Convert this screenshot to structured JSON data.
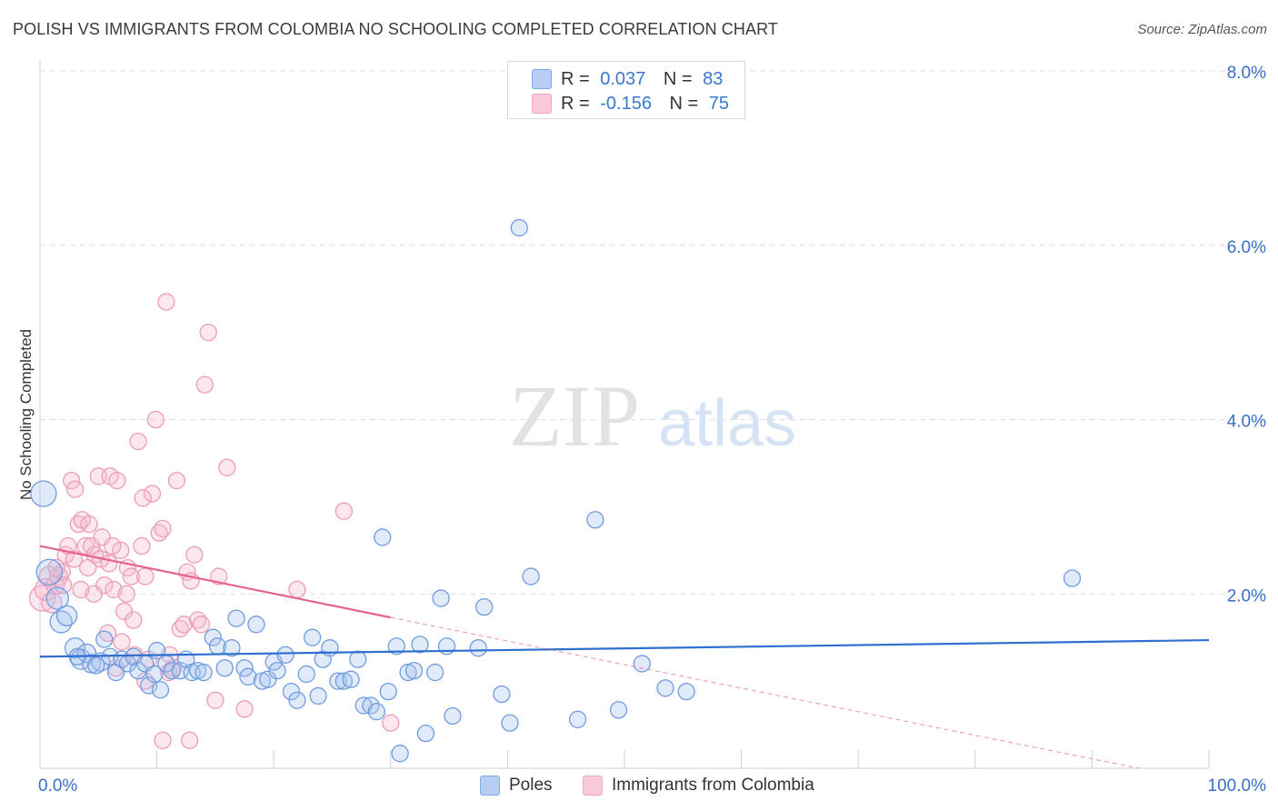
{
  "title": "POLISH VS IMMIGRANTS FROM COLOMBIA NO SCHOOLING COMPLETED CORRELATION CHART",
  "source": "Source: ZipAtlas.com",
  "watermark": {
    "zip": "ZIP",
    "atlas": "atlas"
  },
  "legend": {
    "r_label": "R =",
    "n_label": "N =",
    "rows": [
      {
        "r": "0.037",
        "n": "83"
      },
      {
        "r": "-0.156",
        "n": "75"
      }
    ]
  },
  "chart_data": {
    "type": "scatter",
    "title": "POLISH VS IMMIGRANTS FROM COLOMBIA NO SCHOOLING COMPLETED CORRELATION CHART",
    "xlabel": "",
    "ylabel": "No Schooling Completed",
    "xlim": [
      0,
      100
    ],
    "ylim": [
      0,
      8
    ],
    "x_tick_labels": [
      {
        "value": 0,
        "label": "0.0%"
      },
      {
        "value": 100,
        "label": "100.0%"
      }
    ],
    "y_tick_labels": [
      {
        "value": 2,
        "label": "2.0%"
      },
      {
        "value": 4,
        "label": "4.0%"
      },
      {
        "value": 6,
        "label": "6.0%"
      },
      {
        "value": 8,
        "label": "8.0%"
      }
    ],
    "grid": true,
    "legend_position": "bottom",
    "series": [
      {
        "name": "Poles",
        "color": "#7fa8e8",
        "line_color": "#2f6fcf",
        "trend": {
          "x": [
            0,
            100
          ],
          "y": [
            1.28,
            1.47
          ],
          "extend_dashed_to": 100
        },
        "points": [
          {
            "x": 0.3,
            "y": 3.15,
            "s": 14
          },
          {
            "x": 0.8,
            "y": 2.25,
            "s": 14
          },
          {
            "x": 1.5,
            "y": 1.95,
            "s": 12
          },
          {
            "x": 1.8,
            "y": 1.68,
            "s": 12
          },
          {
            "x": 2.3,
            "y": 1.75,
            "s": 11
          },
          {
            "x": 3.0,
            "y": 1.38,
            "s": 11
          },
          {
            "x": 3.5,
            "y": 1.25,
            "s": 11
          },
          {
            "x": 4.0,
            "y": 1.32,
            "s": 10
          },
          {
            "x": 4.4,
            "y": 1.2,
            "s": 10
          },
          {
            "x": 5.2,
            "y": 1.22,
            "s": 10
          },
          {
            "x": 5.5,
            "y": 1.48,
            "s": 9
          },
          {
            "x": 6.0,
            "y": 1.28,
            "s": 9
          },
          {
            "x": 6.5,
            "y": 1.1,
            "s": 9
          },
          {
            "x": 7.0,
            "y": 1.25,
            "s": 9
          },
          {
            "x": 7.5,
            "y": 1.2,
            "s": 9
          },
          {
            "x": 8.0,
            "y": 1.28,
            "s": 9
          },
          {
            "x": 8.4,
            "y": 1.12,
            "s": 9
          },
          {
            "x": 9.0,
            "y": 1.2,
            "s": 9
          },
          {
            "x": 9.3,
            "y": 0.95,
            "s": 9
          },
          {
            "x": 9.8,
            "y": 1.08,
            "s": 9
          },
          {
            "x": 10.3,
            "y": 0.9,
            "s": 9
          },
          {
            "x": 10.8,
            "y": 1.2,
            "s": 9
          },
          {
            "x": 11.3,
            "y": 1.12,
            "s": 9
          },
          {
            "x": 12.0,
            "y": 1.12,
            "s": 9
          },
          {
            "x": 12.5,
            "y": 1.25,
            "s": 9
          },
          {
            "x": 13.0,
            "y": 1.1,
            "s": 9
          },
          {
            "x": 13.5,
            "y": 1.12,
            "s": 9
          },
          {
            "x": 14.0,
            "y": 1.1,
            "s": 9
          },
          {
            "x": 14.8,
            "y": 1.5,
            "s": 9
          },
          {
            "x": 15.2,
            "y": 1.4,
            "s": 9
          },
          {
            "x": 15.8,
            "y": 1.15,
            "s": 9
          },
          {
            "x": 16.4,
            "y": 1.38,
            "s": 9
          },
          {
            "x": 16.8,
            "y": 1.72,
            "s": 9
          },
          {
            "x": 17.5,
            "y": 1.15,
            "s": 9
          },
          {
            "x": 17.8,
            "y": 1.05,
            "s": 9
          },
          {
            "x": 18.5,
            "y": 1.65,
            "s": 9
          },
          {
            "x": 19.0,
            "y": 1.0,
            "s": 9
          },
          {
            "x": 19.5,
            "y": 1.02,
            "s": 9
          },
          {
            "x": 20.0,
            "y": 1.22,
            "s": 9
          },
          {
            "x": 20.3,
            "y": 1.12,
            "s": 9
          },
          {
            "x": 21.0,
            "y": 1.3,
            "s": 9
          },
          {
            "x": 21.5,
            "y": 0.88,
            "s": 9
          },
          {
            "x": 22.0,
            "y": 0.78,
            "s": 9
          },
          {
            "x": 22.8,
            "y": 1.08,
            "s": 9
          },
          {
            "x": 23.3,
            "y": 1.5,
            "s": 9
          },
          {
            "x": 23.8,
            "y": 0.83,
            "s": 9
          },
          {
            "x": 24.2,
            "y": 1.25,
            "s": 9
          },
          {
            "x": 24.8,
            "y": 1.38,
            "s": 9
          },
          {
            "x": 25.5,
            "y": 1.0,
            "s": 9
          },
          {
            "x": 26.0,
            "y": 1.0,
            "s": 9
          },
          {
            "x": 26.6,
            "y": 1.02,
            "s": 9
          },
          {
            "x": 27.2,
            "y": 1.25,
            "s": 9
          },
          {
            "x": 27.7,
            "y": 0.72,
            "s": 9
          },
          {
            "x": 28.3,
            "y": 0.72,
            "s": 9
          },
          {
            "x": 28.8,
            "y": 0.65,
            "s": 9
          },
          {
            "x": 29.3,
            "y": 2.65,
            "s": 9
          },
          {
            "x": 29.8,
            "y": 0.88,
            "s": 9
          },
          {
            "x": 30.5,
            "y": 1.4,
            "s": 9
          },
          {
            "x": 30.8,
            "y": 0.17,
            "s": 9
          },
          {
            "x": 31.5,
            "y": 1.1,
            "s": 9
          },
          {
            "x": 32.0,
            "y": 1.12,
            "s": 9
          },
          {
            "x": 32.5,
            "y": 1.42,
            "s": 9
          },
          {
            "x": 33.0,
            "y": 0.4,
            "s": 9
          },
          {
            "x": 33.8,
            "y": 1.1,
            "s": 9
          },
          {
            "x": 34.3,
            "y": 1.95,
            "s": 9
          },
          {
            "x": 34.8,
            "y": 1.4,
            "s": 9
          },
          {
            "x": 35.3,
            "y": 0.6,
            "s": 9
          },
          {
            "x": 37.5,
            "y": 1.38,
            "s": 9
          },
          {
            "x": 38.0,
            "y": 1.85,
            "s": 9
          },
          {
            "x": 39.5,
            "y": 0.85,
            "s": 9
          },
          {
            "x": 40.2,
            "y": 0.52,
            "s": 9
          },
          {
            "x": 41.0,
            "y": 6.2,
            "s": 9
          },
          {
            "x": 42.0,
            "y": 2.2,
            "s": 9
          },
          {
            "x": 46.0,
            "y": 0.56,
            "s": 9
          },
          {
            "x": 47.5,
            "y": 2.85,
            "s": 9
          },
          {
            "x": 49.5,
            "y": 0.67,
            "s": 9
          },
          {
            "x": 51.5,
            "y": 1.2,
            "s": 9
          },
          {
            "x": 53.5,
            "y": 0.92,
            "s": 9
          },
          {
            "x": 55.3,
            "y": 0.88,
            "s": 9
          },
          {
            "x": 88.3,
            "y": 2.18,
            "s": 9
          },
          {
            "x": 3.2,
            "y": 1.28,
            "s": 9
          },
          {
            "x": 4.8,
            "y": 1.18,
            "s": 9
          },
          {
            "x": 10.0,
            "y": 1.35,
            "s": 9
          }
        ]
      },
      {
        "name": "Immigrants from Colombia",
        "color": "#f1a5bf",
        "line_color": "#e4638e",
        "trend": {
          "x": [
            0,
            30
          ],
          "y": [
            2.55,
            1.73
          ],
          "dashed_x": [
            30,
            94
          ],
          "dashed_y": [
            1.73,
            0.0
          ]
        },
        "points": [
          {
            "x": 0.2,
            "y": 1.95,
            "s": 14
          },
          {
            "x": 0.5,
            "y": 2.05,
            "s": 12
          },
          {
            "x": 0.8,
            "y": 2.2,
            "s": 11
          },
          {
            "x": 1.0,
            "y": 1.9,
            "s": 11
          },
          {
            "x": 1.3,
            "y": 2.1,
            "s": 10
          },
          {
            "x": 1.6,
            "y": 2.2,
            "s": 10
          },
          {
            "x": 1.9,
            "y": 2.25,
            "s": 9
          },
          {
            "x": 2.2,
            "y": 2.45,
            "s": 9
          },
          {
            "x": 2.4,
            "y": 2.55,
            "s": 9
          },
          {
            "x": 2.7,
            "y": 3.3,
            "s": 9
          },
          {
            "x": 3.0,
            "y": 3.2,
            "s": 9
          },
          {
            "x": 3.3,
            "y": 2.8,
            "s": 9
          },
          {
            "x": 3.6,
            "y": 2.85,
            "s": 9
          },
          {
            "x": 3.9,
            "y": 2.55,
            "s": 9
          },
          {
            "x": 4.1,
            "y": 2.3,
            "s": 9
          },
          {
            "x": 4.4,
            "y": 2.55,
            "s": 9
          },
          {
            "x": 4.7,
            "y": 2.45,
            "s": 9
          },
          {
            "x": 5.0,
            "y": 3.35,
            "s": 9
          },
          {
            "x": 5.2,
            "y": 2.4,
            "s": 9
          },
          {
            "x": 5.5,
            "y": 2.1,
            "s": 9
          },
          {
            "x": 5.8,
            "y": 1.55,
            "s": 9
          },
          {
            "x": 6.0,
            "y": 3.35,
            "s": 9
          },
          {
            "x": 6.3,
            "y": 2.05,
            "s": 9
          },
          {
            "x": 6.6,
            "y": 3.3,
            "s": 9
          },
          {
            "x": 6.9,
            "y": 2.5,
            "s": 9
          },
          {
            "x": 7.2,
            "y": 1.8,
            "s": 9
          },
          {
            "x": 7.5,
            "y": 2.3,
            "s": 9
          },
          {
            "x": 7.8,
            "y": 2.2,
            "s": 9
          },
          {
            "x": 8.1,
            "y": 1.3,
            "s": 9
          },
          {
            "x": 8.4,
            "y": 3.75,
            "s": 9
          },
          {
            "x": 8.7,
            "y": 2.55,
            "s": 9
          },
          {
            "x": 9.0,
            "y": 2.2,
            "s": 9
          },
          {
            "x": 9.3,
            "y": 1.25,
            "s": 9
          },
          {
            "x": 9.6,
            "y": 3.15,
            "s": 9
          },
          {
            "x": 9.9,
            "y": 4.0,
            "s": 9
          },
          {
            "x": 10.2,
            "y": 2.7,
            "s": 9
          },
          {
            "x": 10.5,
            "y": 2.75,
            "s": 9
          },
          {
            "x": 10.8,
            "y": 5.35,
            "s": 9
          },
          {
            "x": 11.1,
            "y": 1.3,
            "s": 9
          },
          {
            "x": 11.4,
            "y": 1.15,
            "s": 9
          },
          {
            "x": 11.7,
            "y": 3.3,
            "s": 9
          },
          {
            "x": 12.0,
            "y": 1.6,
            "s": 9
          },
          {
            "x": 12.3,
            "y": 1.65,
            "s": 9
          },
          {
            "x": 12.6,
            "y": 2.25,
            "s": 9
          },
          {
            "x": 12.9,
            "y": 2.15,
            "s": 9
          },
          {
            "x": 13.2,
            "y": 2.45,
            "s": 9
          },
          {
            "x": 13.5,
            "y": 1.7,
            "s": 9
          },
          {
            "x": 13.8,
            "y": 1.65,
            "s": 9
          },
          {
            "x": 14.1,
            "y": 4.4,
            "s": 9
          },
          {
            "x": 14.4,
            "y": 5.0,
            "s": 9
          },
          {
            "x": 15.0,
            "y": 0.78,
            "s": 9
          },
          {
            "x": 15.3,
            "y": 2.2,
            "s": 9
          },
          {
            "x": 16.0,
            "y": 3.45,
            "s": 9
          },
          {
            "x": 17.5,
            "y": 0.68,
            "s": 9
          },
          {
            "x": 22.0,
            "y": 2.05,
            "s": 9
          },
          {
            "x": 26.0,
            "y": 2.95,
            "s": 9
          },
          {
            "x": 30.0,
            "y": 0.52,
            "s": 9
          },
          {
            "x": 10.5,
            "y": 0.32,
            "s": 9
          },
          {
            "x": 12.8,
            "y": 0.32,
            "s": 9
          },
          {
            "x": 9.0,
            "y": 1.0,
            "s": 9
          },
          {
            "x": 6.5,
            "y": 1.15,
            "s": 9
          },
          {
            "x": 5.3,
            "y": 2.65,
            "s": 9
          },
          {
            "x": 4.6,
            "y": 2.0,
            "s": 9
          },
          {
            "x": 3.5,
            "y": 2.05,
            "s": 9
          },
          {
            "x": 2.9,
            "y": 2.4,
            "s": 9
          },
          {
            "x": 7.0,
            "y": 1.45,
            "s": 9
          },
          {
            "x": 8.0,
            "y": 1.7,
            "s": 9
          },
          {
            "x": 6.2,
            "y": 2.55,
            "s": 9
          },
          {
            "x": 5.9,
            "y": 2.35,
            "s": 9
          },
          {
            "x": 7.4,
            "y": 2.0,
            "s": 9
          },
          {
            "x": 1.4,
            "y": 2.3,
            "s": 9
          },
          {
            "x": 2.0,
            "y": 2.1,
            "s": 9
          },
          {
            "x": 11.0,
            "y": 1.1,
            "s": 9
          },
          {
            "x": 4.2,
            "y": 2.8,
            "s": 9
          },
          {
            "x": 8.8,
            "y": 3.1,
            "s": 9
          }
        ]
      }
    ]
  },
  "colors": {
    "blue": "#2f6fcf",
    "pink": "#e4638e",
    "tick_label": "#3a6fc7",
    "grid": "#dedede"
  }
}
